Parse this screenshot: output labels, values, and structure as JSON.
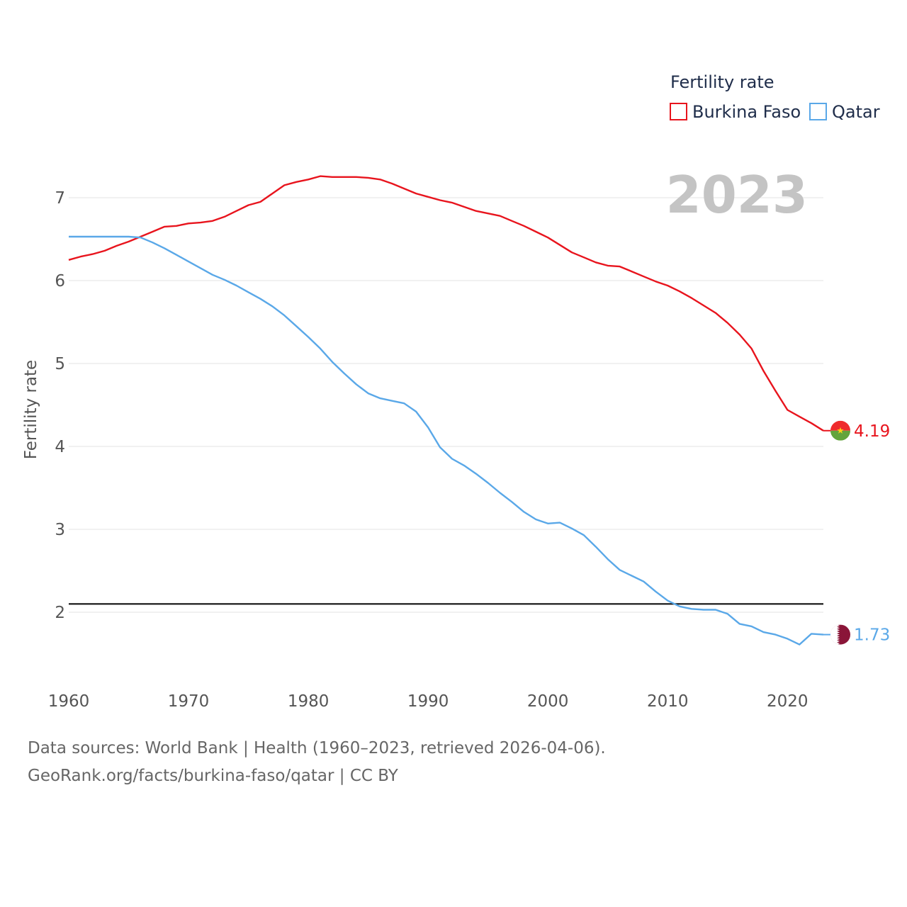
{
  "chart_data": {
    "type": "line",
    "title": "Fertility rate",
    "ylabel": "Fertility rate",
    "xlabel": "",
    "year_label": "2023",
    "xlim": [
      1960,
      2023
    ],
    "ylim": [
      1.4,
      7.6
    ],
    "x_ticks": [
      1960,
      1970,
      1980,
      1990,
      2000,
      2010,
      2020
    ],
    "y_ticks": [
      2,
      3,
      4,
      5,
      6,
      7
    ],
    "reference_line": 2.1,
    "grid": true,
    "legend_position": "top-right",
    "x": [
      1960,
      1961,
      1962,
      1963,
      1964,
      1965,
      1966,
      1967,
      1968,
      1969,
      1970,
      1971,
      1972,
      1973,
      1974,
      1975,
      1976,
      1977,
      1978,
      1979,
      1980,
      1981,
      1982,
      1983,
      1984,
      1985,
      1986,
      1987,
      1988,
      1989,
      1990,
      1991,
      1992,
      1993,
      1994,
      1995,
      1996,
      1997,
      1998,
      1999,
      2000,
      2001,
      2002,
      2003,
      2004,
      2005,
      2006,
      2007,
      2008,
      2009,
      2010,
      2011,
      2012,
      2013,
      2014,
      2015,
      2016,
      2017,
      2018,
      2019,
      2020,
      2021,
      2022,
      2023
    ],
    "series": [
      {
        "name": "Burkina Faso",
        "color": "#e8141d",
        "end_label": "4.19",
        "values": [
          6.25,
          6.29,
          6.32,
          6.36,
          6.42,
          6.47,
          6.53,
          6.59,
          6.65,
          6.66,
          6.69,
          6.7,
          6.72,
          6.77,
          6.84,
          6.91,
          6.95,
          7.05,
          7.15,
          7.19,
          7.22,
          7.26,
          7.25,
          7.25,
          7.25,
          7.24,
          7.22,
          7.17,
          7.11,
          7.05,
          7.01,
          6.97,
          6.94,
          6.89,
          6.84,
          6.81,
          6.78,
          6.72,
          6.66,
          6.59,
          6.52,
          6.43,
          6.34,
          6.28,
          6.22,
          6.18,
          6.17,
          6.11,
          6.05,
          5.99,
          5.94,
          5.87,
          5.79,
          5.7,
          5.61,
          5.49,
          5.35,
          5.18,
          4.91,
          4.67,
          4.44,
          4.36,
          4.28,
          4.19
        ]
      },
      {
        "name": "Qatar",
        "color": "#5aa8e8",
        "end_label": "1.73",
        "values": [
          6.53,
          6.53,
          6.53,
          6.53,
          6.53,
          6.53,
          6.52,
          6.46,
          6.39,
          6.31,
          6.23,
          6.15,
          6.07,
          6.01,
          5.94,
          5.86,
          5.78,
          5.69,
          5.58,
          5.45,
          5.32,
          5.18,
          5.02,
          4.88,
          4.75,
          4.64,
          4.58,
          4.55,
          4.52,
          4.42,
          4.23,
          3.99,
          3.85,
          3.77,
          3.67,
          3.56,
          3.44,
          3.33,
          3.21,
          3.12,
          3.07,
          3.08,
          3.01,
          2.93,
          2.79,
          2.64,
          2.51,
          2.44,
          2.37,
          2.25,
          2.14,
          2.07,
          2.04,
          2.03,
          2.03,
          1.98,
          1.86,
          1.83,
          1.76,
          1.73,
          1.68,
          1.61,
          1.74,
          1.73
        ]
      }
    ]
  },
  "footer": {
    "line1": "Data sources: World Bank | Health (1960–2023, retrieved 2026-04-06).",
    "line2": "GeoRank.org/facts/burkina-faso/qatar | CC BY"
  },
  "flags": {
    "burkina_faso": "burkina-faso-flag-icon",
    "qatar": "qatar-flag-icon"
  }
}
